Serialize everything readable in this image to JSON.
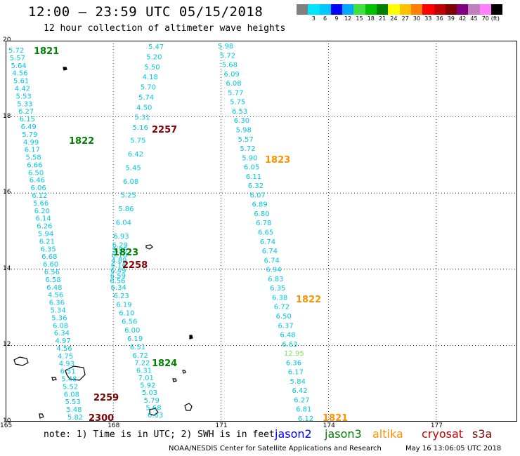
{
  "title": "12:00 – 23:59 UTC 05/15/2018",
  "subtitle": "12 hour collection of altimeter wave heights",
  "colorbar": {
    "unit": "(ft)",
    "colors": [
      "#808080",
      "#00e5ff",
      "#00c8ff",
      "#0000ff",
      "#00a8ff",
      "#40e040",
      "#00c000",
      "#008000",
      "#ffff00",
      "#ffc000",
      "#ff8000",
      "#ff0000",
      "#c00000",
      "#800000",
      "#800080",
      "#c080c0",
      "#ff80ff",
      "#000000"
    ],
    "labels": [
      "3",
      "6",
      "9",
      "12",
      "15",
      "18",
      "21",
      "24",
      "27",
      "30",
      "33",
      "36",
      "39",
      "42",
      "45",
      "70"
    ]
  },
  "map_axes": {
    "y_labels": [
      "20",
      "18",
      "16",
      "14",
      "12",
      "10"
    ],
    "x_labels": [
      "165",
      "168",
      "171",
      "174",
      "177"
    ]
  },
  "track_colors": {
    "cyan": "#00c8e0",
    "green_light": "#80e060",
    "jason3": "#008000",
    "altika": "#ff9000",
    "cryosat": "#c00000",
    "s3a": "#800000"
  },
  "track1": {
    "values": [
      "5.72",
      "5.57",
      "5.64",
      "4.56",
      "5.61",
      "4.42",
      "5.53",
      "5.33",
      "6.27",
      "6.15",
      "6.49",
      "5.79",
      "4.99",
      "6.17",
      "5.58",
      "6.66",
      "6.50",
      "6.46",
      "6.06",
      "6.12",
      "5.66",
      "6.20",
      "6.14",
      "6.26",
      "5.94",
      "6.21",
      "6.35",
      "6.68",
      "6.60",
      "6.56",
      "6.58",
      "6.48",
      "4.56",
      "6.36",
      "5.34",
      "5.36",
      "6.08",
      "6.34",
      "4.97",
      "4.56",
      "4.75",
      "4.93",
      "6.51",
      "5.48",
      "5.52",
      "6.08",
      "5.53",
      "5.48",
      "5.82"
    ],
    "times": [
      "1821",
      "1822",
      "1823"
    ]
  },
  "track2": {
    "values": [
      "5.47",
      "5.20",
      "5.50",
      "4.18",
      "5.70",
      "5.74",
      "4.50",
      "5.31",
      "5.16",
      "5.75",
      "6.42",
      "5.45",
      "6.08",
      "5.25",
      "5.86",
      "6.04",
      "6.93",
      "6.29",
      "5.95",
      "6.10",
      "4.89",
      "6.16",
      "6.49",
      "6.59",
      "6.56",
      "6.34",
      "6.23",
      "6.19",
      "6.10",
      "6.56",
      "6.00",
      "6.19",
      "6.51",
      "6.72",
      "7.22",
      "6.31",
      "7.01",
      "5.92",
      "5.03",
      "5.79",
      "5.68",
      "6.63"
    ],
    "times": [
      "2257",
      "2258",
      "2259",
      "2300",
      "1824"
    ]
  },
  "track3": {
    "values": [
      "5.98",
      "5.72",
      "5.68",
      "6.09",
      "6.08",
      "5.77",
      "5.75",
      "6.53",
      "6.30",
      "5.98",
      "5.57",
      "5.72",
      "5.90",
      "6.05",
      "6.11",
      "6.32",
      "6.07",
      "6.89",
      "6.80",
      "6.78",
      "6.65",
      "6.74",
      "6.74",
      "6.74",
      "6.94",
      "6.83",
      "6.35",
      "6.38",
      "6.72",
      "6.50",
      "6.37",
      "6.48",
      "6.63",
      "12.95",
      "6.36",
      "6.17",
      "5.84",
      "6.42",
      "6.27",
      "6.81",
      "6.12"
    ],
    "times": [
      "1823",
      "1822",
      "1821"
    ]
  },
  "note": "note: 1) Time is in UTC; 2) SWH is in feet",
  "legend": [
    {
      "name": "jason2",
      "color": "#0000ff"
    },
    {
      "name": "jason3",
      "color": "#008000"
    },
    {
      "name": "altika",
      "color": "#ff9000"
    },
    {
      "name": "cryosat",
      "color": "#c00000"
    },
    {
      "name": "s3a",
      "color": "#800000"
    }
  ],
  "footer": "NOAA/NESDIS Center for Satellite Applications and Research",
  "footer_time": "May 16 13:06:05 UTC 2018"
}
